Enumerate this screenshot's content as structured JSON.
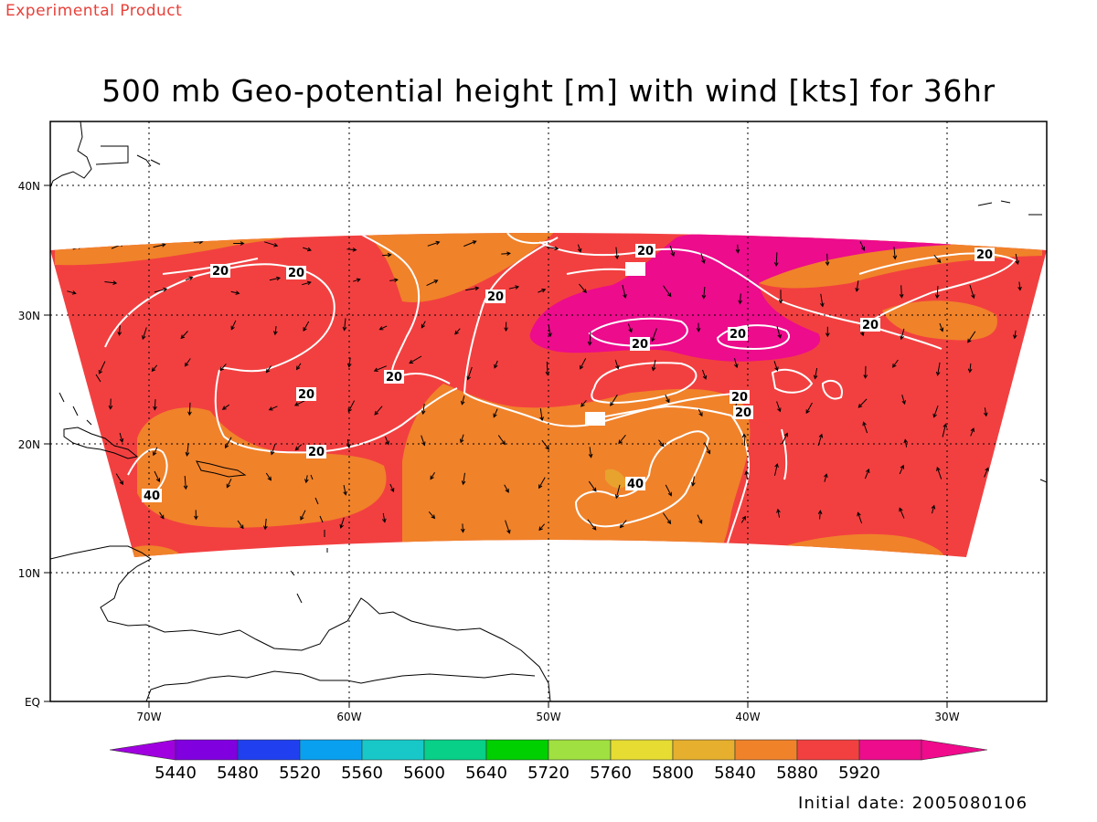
{
  "header": {
    "tag": "Experimental Product",
    "title": "500 mb Geo-potential height [m] with wind [kts] for 36hr"
  },
  "footer": {
    "initial_date": "Initial date: 2005080106"
  },
  "map": {
    "lon_ticks": [
      "70W",
      "60W",
      "50W",
      "40W",
      "30W"
    ],
    "lat_ticks": [
      "40N",
      "30N",
      "20N",
      "10N",
      "EQ"
    ],
    "grid": "dotted",
    "shading_colors": {
      "5840": "#e8a22e",
      "5880": "#f0822a",
      "5920": "#f24040",
      "above": "#ec0c8c"
    },
    "wind_contour_color": "#ffffff",
    "wind_contour_labels": [
      "20",
      "20",
      "20",
      "20",
      "20",
      "20",
      "20",
      "20",
      "20",
      "20",
      "20",
      "20",
      "20",
      "40",
      "40"
    ],
    "coastline_color": "#000000"
  },
  "colorbar": {
    "labels": [
      "5440",
      "5480",
      "5520",
      "5560",
      "5600",
      "5640",
      "5720",
      "5760",
      "5800",
      "5840",
      "5880",
      "5920"
    ],
    "colors": [
      "#a000e0",
      "#8000e0",
      "#2040f0",
      "#0aa0f0",
      "#18c8c8",
      "#08d088",
      "#00d000",
      "#a0e040",
      "#e6dc32",
      "#e6af2e",
      "#f0822a",
      "#f24040",
      "#ec0c8c",
      "#f00a8c"
    ]
  }
}
